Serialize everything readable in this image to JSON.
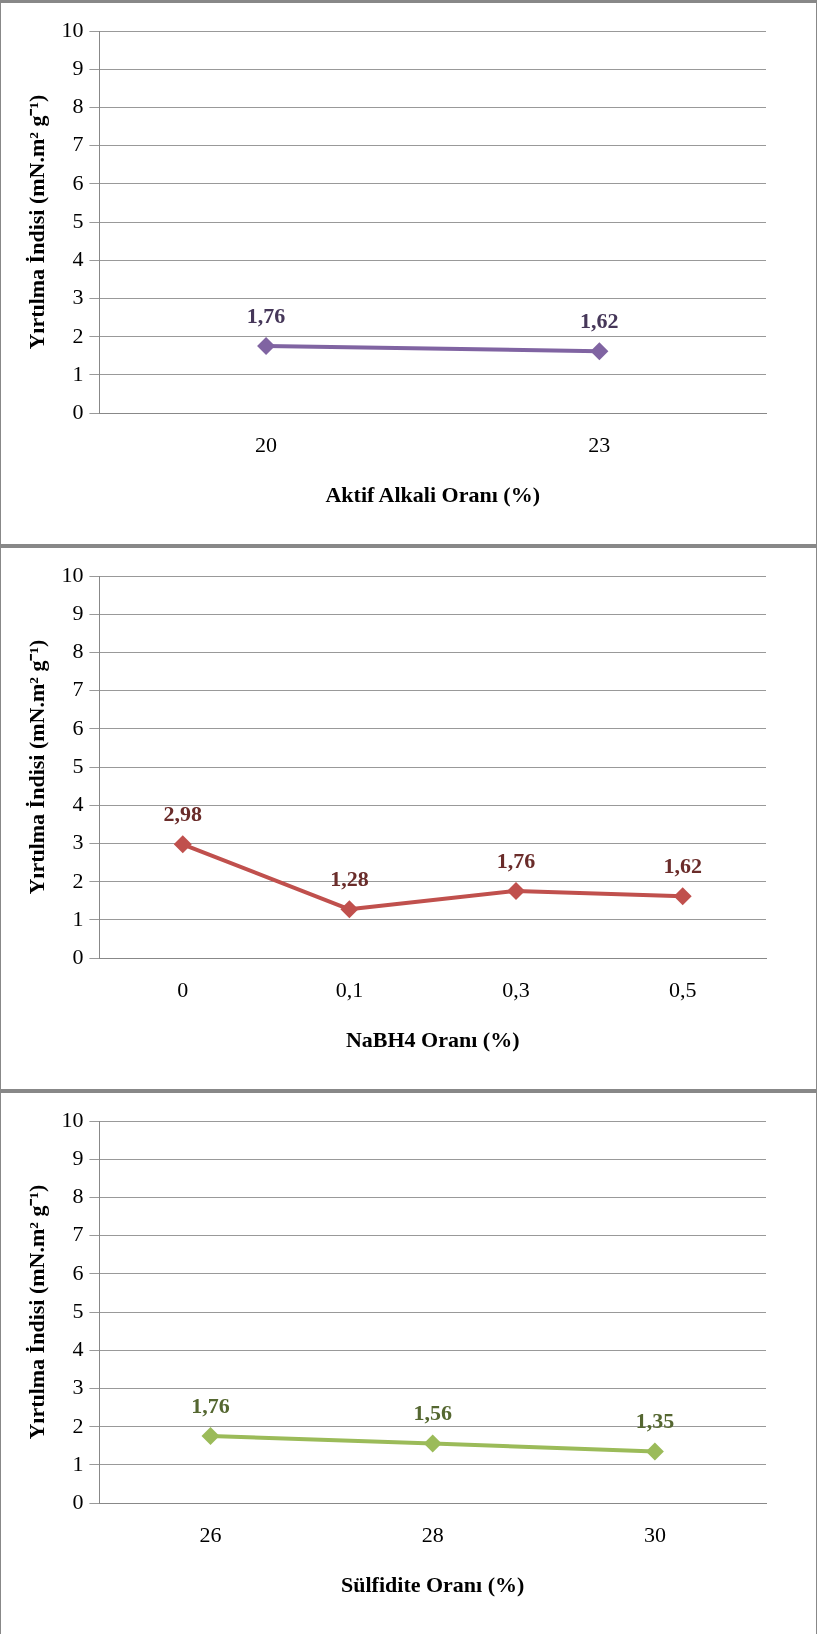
{
  "chart_data": [
    {
      "type": "line",
      "xlabel": "Aktif Alkali Oranı (%)",
      "ylabel": "Yırtılma İndisi (mN.m² g⁻¹)",
      "categories": [
        "20",
        "23"
      ],
      "series": [
        {
          "color": "#8064a2",
          "values": [
            1.76,
            1.62
          ],
          "value_labels": [
            "1,76",
            "1,62"
          ]
        }
      ],
      "ylim": [
        0,
        10
      ],
      "yticks": [
        0,
        1,
        2,
        3,
        4,
        5,
        6,
        7,
        8,
        9,
        10
      ],
      "grid": "y",
      "legend": false,
      "marker": "diamond",
      "line_style": "solid"
    },
    {
      "type": "line",
      "xlabel": "NaBH4 Oranı (%)",
      "ylabel": "Yırtılma İndisi (mN.m² g⁻¹)",
      "categories": [
        "0",
        "0,1",
        "0,3",
        "0,5"
      ],
      "series": [
        {
          "color": "#c0504d",
          "values": [
            2.98,
            1.28,
            1.76,
            1.62
          ],
          "value_labels": [
            "2,98",
            "1,28",
            "1,76",
            "1,62"
          ]
        }
      ],
      "ylim": [
        0,
        10
      ],
      "yticks": [
        0,
        1,
        2,
        3,
        4,
        5,
        6,
        7,
        8,
        9,
        10
      ],
      "grid": "y",
      "legend": false,
      "marker": "diamond",
      "line_style": "solid"
    },
    {
      "type": "line",
      "xlabel": "Sülfidite Oranı (%)",
      "ylabel": "Yırtılma İndisi (mN.m² g⁻¹)",
      "categories": [
        "26",
        "28",
        "30"
      ],
      "series": [
        {
          "color": "#9bbb59",
          "values": [
            1.76,
            1.56,
            1.35
          ],
          "value_labels": [
            "1,76",
            "1,56",
            "1,35"
          ]
        }
      ],
      "ylim": [
        0,
        10
      ],
      "yticks": [
        0,
        1,
        2,
        3,
        4,
        5,
        6,
        7,
        8,
        9,
        10
      ],
      "grid": "y",
      "legend": false,
      "marker": "diamond",
      "line_style": "solid"
    }
  ]
}
